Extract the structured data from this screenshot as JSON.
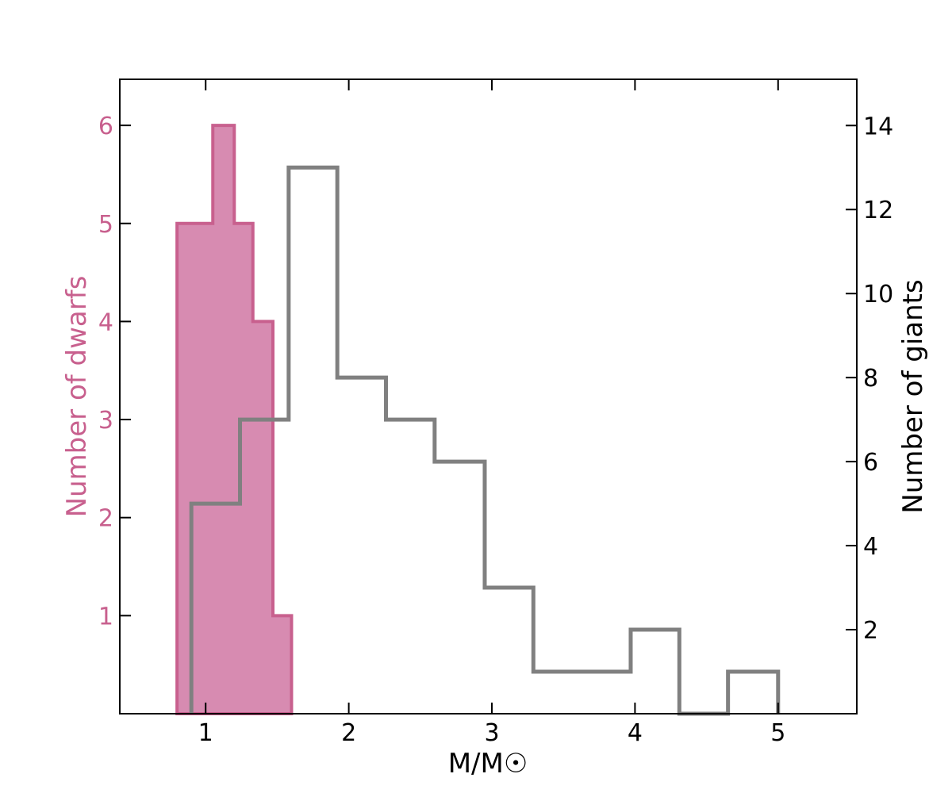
{
  "chart_data": {
    "type": "histogram",
    "xlabel": "M/M☉",
    "xlim": [
      0.4,
      5.55
    ],
    "x_ticks": [
      "1",
      "2",
      "3",
      "4",
      "5"
    ],
    "y_left": {
      "label": "Number of dwarfs",
      "ylim": [
        0,
        6.47
      ],
      "ticks": [
        "1",
        "2",
        "3",
        "4",
        "5",
        "6"
      ],
      "color": "#c8608e"
    },
    "y_right": {
      "label": "Number of giants",
      "ylim": [
        0,
        15.1
      ],
      "ticks": [
        "2",
        "4",
        "6",
        "8",
        "10",
        "12",
        "14"
      ],
      "color": "#000000"
    },
    "series": [
      {
        "name": "dwarfs",
        "axis": "left",
        "style": "stepfilled",
        "fill": "#d78bb1",
        "stroke": "#c8608e",
        "bin_edges": [
          0.8,
          1.05,
          1.2,
          1.33,
          1.47,
          1.6
        ],
        "counts": [
          5,
          6,
          5,
          4,
          1
        ]
      },
      {
        "name": "giants",
        "axis": "right",
        "style": "step",
        "stroke": "#808080",
        "bin_edges": [
          0.9,
          1.24,
          1.58,
          1.92,
          2.26,
          2.6,
          2.95,
          3.29,
          3.63,
          3.97,
          4.31,
          4.65,
          5.0
        ],
        "counts": [
          5,
          7,
          13,
          8,
          7,
          6,
          3,
          1,
          1,
          2,
          0,
          1
        ]
      }
    ]
  }
}
